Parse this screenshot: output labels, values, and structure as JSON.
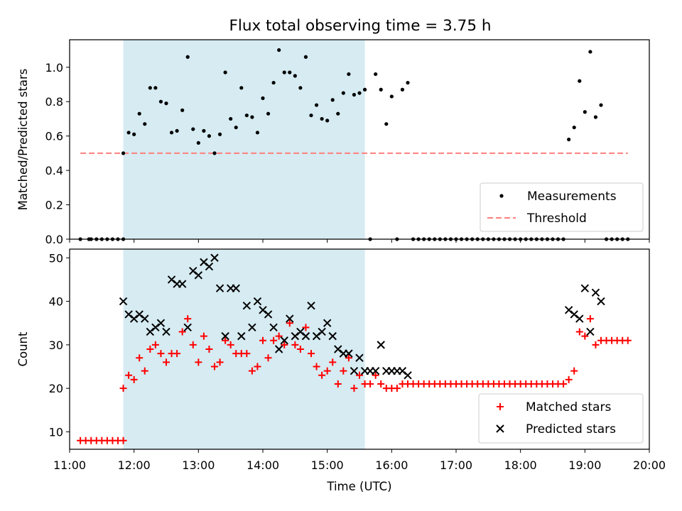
{
  "title": "Flux total observing time = 3.75 h",
  "colors": {
    "band": "#add8e6",
    "threshold": "#ff7f7f",
    "matched": "#ff0000",
    "predicted": "#000000",
    "measurements": "#000000"
  },
  "chart_data": [
    {
      "type": "scatter",
      "ylabel": "Matched/Predicted stars",
      "xlim": [
        "11:00",
        "20:00"
      ],
      "ylim": [
        0,
        1.16
      ],
      "y_ticks": [
        0.0,
        0.2,
        0.4,
        0.6,
        0.8,
        1.0
      ],
      "y_tick_labels": [
        "0.0",
        "0.2",
        "0.4",
        "0.6",
        "0.8",
        "1.0"
      ],
      "shaded_interval": [
        "11:50",
        "15:35"
      ],
      "legend_position": "lower right",
      "series": [
        {
          "name": "Measurements",
          "marker": "dot",
          "x": [
            "11:10",
            "11:18",
            "11:20",
            "11:25",
            "11:30",
            "11:35",
            "11:40",
            "11:45",
            "11:50",
            "11:50",
            "11:55",
            "12:00",
            "12:05",
            "12:10",
            "12:15",
            "12:20",
            "12:25",
            "12:30",
            "12:35",
            "12:40",
            "12:45",
            "12:50",
            "12:55",
            "13:00",
            "13:05",
            "13:10",
            "13:15",
            "13:20",
            "13:25",
            "13:30",
            "13:35",
            "13:40",
            "13:45",
            "13:50",
            "13:55",
            "14:00",
            "14:05",
            "14:10",
            "14:15",
            "14:20",
            "14:25",
            "14:30",
            "14:35",
            "14:40",
            "14:45",
            "14:50",
            "14:55",
            "15:00",
            "15:05",
            "15:10",
            "15:15",
            "15:20",
            "15:25",
            "15:30",
            "15:35",
            "15:40",
            "15:45",
            "15:50",
            "15:55",
            "16:00",
            "16:05",
            "16:10",
            "16:15",
            "16:20",
            "16:25",
            "16:30",
            "16:35",
            "16:40",
            "16:45",
            "16:50",
            "16:55",
            "17:00",
            "17:05",
            "17:10",
            "17:15",
            "17:20",
            "17:25",
            "17:30",
            "17:35",
            "17:40",
            "17:45",
            "17:50",
            "17:55",
            "18:00",
            "18:05",
            "18:10",
            "18:15",
            "18:20",
            "18:25",
            "18:30",
            "18:35",
            "18:40",
            "18:45",
            "18:50",
            "18:55",
            "19:00",
            "19:05",
            "19:10",
            "19:15",
            "19:20",
            "19:25",
            "19:30",
            "19:35",
            "19:40"
          ],
          "y": [
            0,
            0,
            0,
            0,
            0,
            0,
            0,
            0,
            0,
            0.5,
            0.62,
            0.61,
            0.73,
            0.67,
            0.88,
            0.88,
            0.8,
            0.79,
            0.62,
            0.63,
            0.75,
            1.06,
            0.64,
            0.56,
            0.63,
            0.6,
            0.5,
            0.61,
            0.97,
            0.7,
            0.65,
            0.88,
            0.72,
            0.71,
            0.62,
            0.82,
            0.73,
            0.91,
            1.1,
            0.97,
            0.97,
            0.95,
            0.88,
            1.06,
            0.72,
            0.78,
            0.7,
            0.69,
            0.81,
            0.73,
            0.85,
            0.96,
            0.84,
            0.85,
            0.87,
            0,
            0.96,
            0.87,
            0.67,
            0.83,
            0,
            0.87,
            0.91,
            0,
            0,
            0,
            0,
            0,
            0,
            0,
            0,
            0,
            0,
            0,
            0,
            0,
            0,
            0,
            0,
            0,
            0,
            0,
            0,
            0,
            0,
            0,
            0,
            0,
            0,
            0,
            0,
            0,
            0.58,
            0.65,
            0.92,
            0.74,
            1.09,
            0.71,
            0.78,
            0,
            0,
            0,
            0,
            0
          ]
        },
        {
          "name": "Threshold",
          "style": "dashed",
          "x": [
            "11:10",
            "19:40"
          ],
          "y": [
            0.5,
            0.5
          ]
        }
      ]
    },
    {
      "type": "scatter",
      "xlabel": "Time (UTC)",
      "ylabel": "Count",
      "xlim": [
        "11:00",
        "20:00"
      ],
      "ylim": [
        6,
        52
      ],
      "x_ticks": [
        "11:00",
        "12:00",
        "13:00",
        "14:00",
        "15:00",
        "16:00",
        "17:00",
        "18:00",
        "19:00",
        "20:00"
      ],
      "y_ticks": [
        10,
        20,
        30,
        40,
        50
      ],
      "y_tick_labels": [
        "10",
        "20",
        "30",
        "40",
        "50"
      ],
      "shaded_interval": [
        "11:50",
        "15:35"
      ],
      "legend_position": "lower right",
      "series": [
        {
          "name": "Matched stars",
          "marker": "plus",
          "x": [
            "11:10",
            "11:15",
            "11:20",
            "11:25",
            "11:30",
            "11:35",
            "11:40",
            "11:45",
            "11:50",
            "11:50",
            "11:55",
            "12:00",
            "12:05",
            "12:10",
            "12:15",
            "12:20",
            "12:25",
            "12:30",
            "12:35",
            "12:40",
            "12:45",
            "12:50",
            "12:55",
            "13:00",
            "13:05",
            "13:10",
            "13:15",
            "13:20",
            "13:25",
            "13:30",
            "13:35",
            "13:40",
            "13:45",
            "13:50",
            "13:55",
            "14:00",
            "14:05",
            "14:10",
            "14:15",
            "14:20",
            "14:25",
            "14:30",
            "14:35",
            "14:40",
            "14:45",
            "14:50",
            "14:55",
            "15:00",
            "15:05",
            "15:10",
            "15:15",
            "15:20",
            "15:25",
            "15:30",
            "15:35",
            "15:40",
            "15:45",
            "15:50",
            "15:55",
            "16:00",
            "16:05",
            "16:10",
            "16:15",
            "16:20",
            "16:25",
            "16:30",
            "16:35",
            "16:40",
            "16:45",
            "16:50",
            "16:55",
            "17:00",
            "17:05",
            "17:10",
            "17:15",
            "17:20",
            "17:25",
            "17:30",
            "17:35",
            "17:40",
            "17:45",
            "17:50",
            "17:55",
            "18:00",
            "18:05",
            "18:10",
            "18:15",
            "18:20",
            "18:25",
            "18:30",
            "18:35",
            "18:40",
            "18:45",
            "18:50",
            "18:55",
            "19:00",
            "19:05",
            "19:10",
            "19:15",
            "19:20",
            "19:25",
            "19:30",
            "19:35",
            "19:40"
          ],
          "y": [
            8,
            8,
            8,
            8,
            8,
            8,
            8,
            8,
            8,
            20,
            23,
            22,
            27,
            24,
            29,
            30,
            28,
            26,
            28,
            28,
            33,
            36,
            30,
            26,
            32,
            29,
            25,
            26,
            31,
            30,
            28,
            28,
            28,
            24,
            25,
            31,
            27,
            31,
            32,
            30,
            35,
            30,
            29,
            34,
            28,
            25,
            23,
            24,
            26,
            21,
            24,
            27,
            20,
            23,
            21,
            21,
            23,
            21,
            20,
            20,
            20,
            21,
            21,
            21,
            21,
            21,
            21,
            21,
            21,
            21,
            21,
            21,
            21,
            21,
            21,
            21,
            21,
            21,
            21,
            21,
            21,
            21,
            21,
            21,
            21,
            21,
            21,
            21,
            21,
            21,
            21,
            21,
            22,
            24,
            33,
            32,
            36,
            30,
            31,
            31,
            31,
            31,
            31,
            31
          ]
        },
        {
          "name": "Predicted stars",
          "marker": "x",
          "x": [
            "11:50",
            "11:55",
            "12:00",
            "12:05",
            "12:10",
            "12:15",
            "12:20",
            "12:25",
            "12:30",
            "12:35",
            "12:40",
            "12:45",
            "12:50",
            "12:55",
            "13:00",
            "13:05",
            "13:10",
            "13:15",
            "13:20",
            "13:25",
            "13:30",
            "13:35",
            "13:40",
            "13:45",
            "13:50",
            "13:55",
            "14:00",
            "14:05",
            "14:10",
            "14:15",
            "14:20",
            "14:25",
            "14:30",
            "14:35",
            "14:40",
            "14:45",
            "14:50",
            "14:55",
            "15:00",
            "15:05",
            "15:10",
            "15:15",
            "15:20",
            "15:25",
            "15:30",
            "15:35",
            "15:40",
            "15:45",
            "15:50",
            "15:55",
            "16:00",
            "16:05",
            "16:10",
            "16:15",
            "18:45",
            "18:50",
            "18:55",
            "19:00",
            "19:05",
            "19:10",
            "19:15"
          ],
          "y": [
            40,
            37,
            36,
            37,
            36,
            33,
            34,
            35,
            33,
            45,
            44,
            44,
            34,
            47,
            46,
            49,
            48,
            50,
            43,
            32,
            43,
            43,
            32,
            39,
            34,
            40,
            38,
            37,
            34,
            29,
            31,
            36,
            32,
            33,
            32,
            39,
            32,
            33,
            35,
            32,
            29,
            28,
            28,
            24,
            27,
            24,
            24,
            24,
            30,
            24,
            24,
            24,
            24,
            23,
            38,
            37,
            36,
            43,
            33,
            42,
            40
          ]
        }
      ]
    }
  ]
}
